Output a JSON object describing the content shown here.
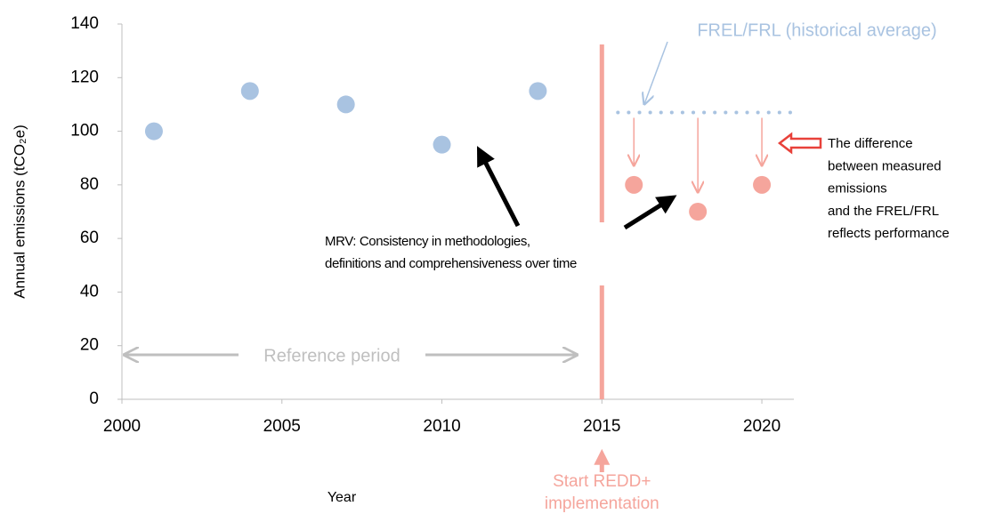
{
  "chart_data": {
    "type": "scatter",
    "y_label": "Annual emissions (tCO₂e)",
    "x_label": "Year",
    "xlim": [
      2000,
      2021
    ],
    "ylim": [
      0,
      140
    ],
    "xticks": [
      2000,
      2005,
      2010,
      2015,
      2020
    ],
    "yticks": [
      0,
      20,
      40,
      60,
      80,
      100,
      120,
      140
    ],
    "grid": false,
    "series": [
      {
        "color": "#a9c3e1",
        "x": [
          2001,
          2004,
          2007,
          2010,
          2013
        ],
        "values": [
          100,
          115,
          110,
          95,
          115
        ]
      },
      {
        "color": "#f5a59c",
        "x": [
          2016,
          2018,
          2020
        ],
        "values": [
          80,
          70,
          80
        ]
      }
    ],
    "frel": {
      "label": "FREL/FRL (historical average)",
      "value": 107,
      "x": [
        2015.5,
        2021
      ],
      "color": "#a9c3e1"
    },
    "implementation": {
      "lines": [
        "Start REDD+",
        "implementation"
      ],
      "x": 2015,
      "color": "#f5a59c"
    },
    "reference_period": {
      "label": "Reference period",
      "color": "#bfbfbf"
    },
    "mrv_note": [
      "MRV: Consistency in methodologies,",
      "definitions and comprehensiveness over time"
    ],
    "performance_note": [
      "The difference",
      "between measured",
      "emissions",
      "and the FREL/FRL",
      "reflects performance"
    ]
  }
}
